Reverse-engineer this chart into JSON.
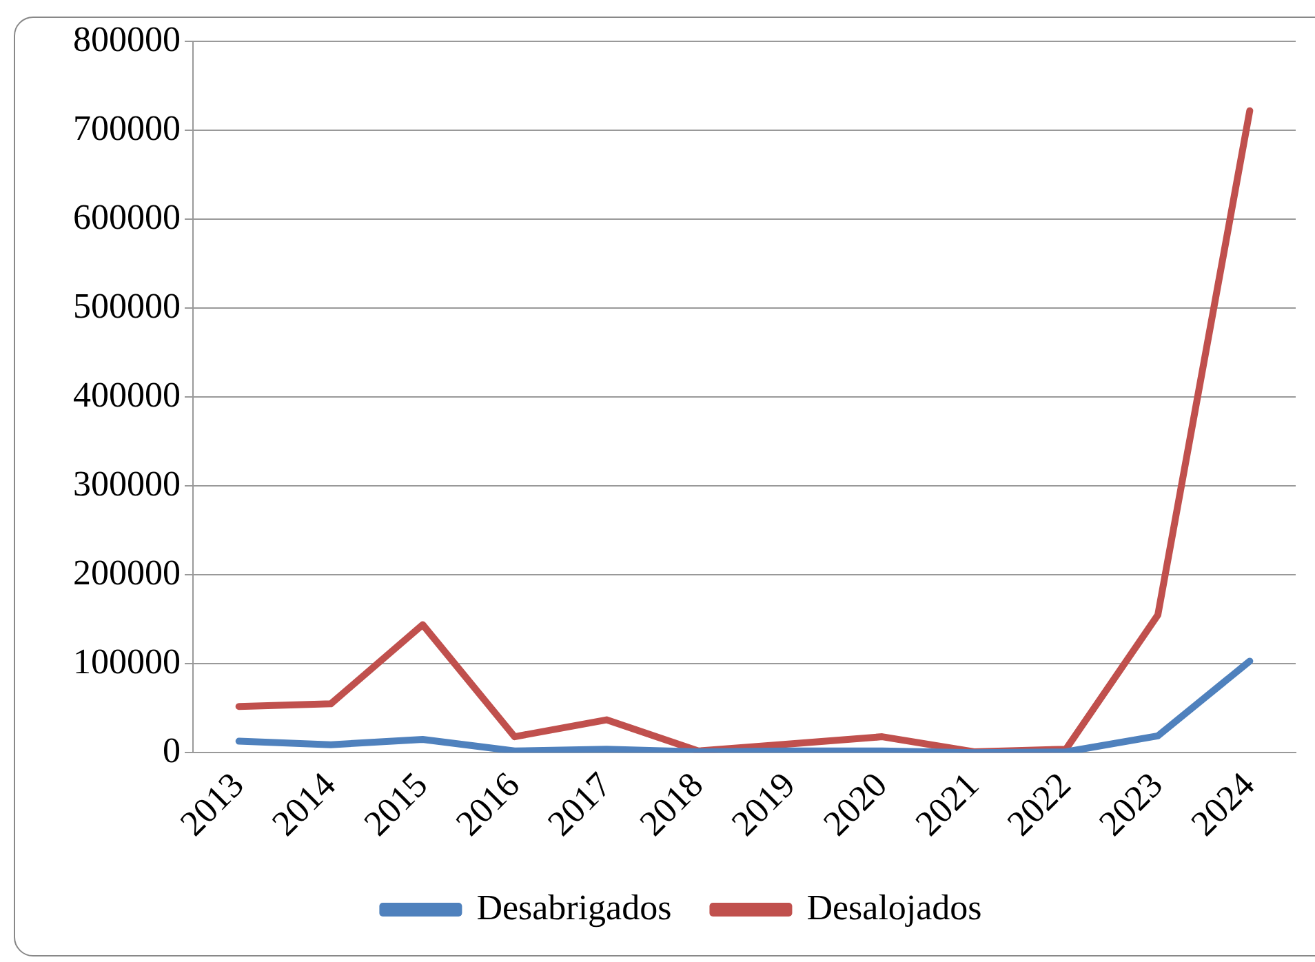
{
  "chart_data": {
    "type": "line",
    "categories": [
      "2013",
      "2014",
      "2015",
      "2016",
      "2017",
      "2018",
      "2019",
      "2020",
      "2021",
      "2022",
      "2023",
      "2024"
    ],
    "series": [
      {
        "name": "Desabrigados",
        "color": "#4f81bd",
        "values": [
          13000,
          9000,
          15000,
          2000,
          4000,
          1000,
          2000,
          2000,
          0,
          1000,
          19000,
          103000
        ]
      },
      {
        "name": "Desalojados",
        "color": "#c0504d",
        "values": [
          52000,
          55000,
          144000,
          18000,
          37000,
          2000,
          10000,
          18000,
          1000,
          4000,
          155000,
          722000
        ]
      }
    ],
    "ylim": [
      0,
      800000
    ],
    "yticks": [
      0,
      100000,
      200000,
      300000,
      400000,
      500000,
      600000,
      700000,
      800000
    ],
    "grid": "y",
    "legend": "bottom",
    "marker": "none",
    "line_style": "solid"
  }
}
